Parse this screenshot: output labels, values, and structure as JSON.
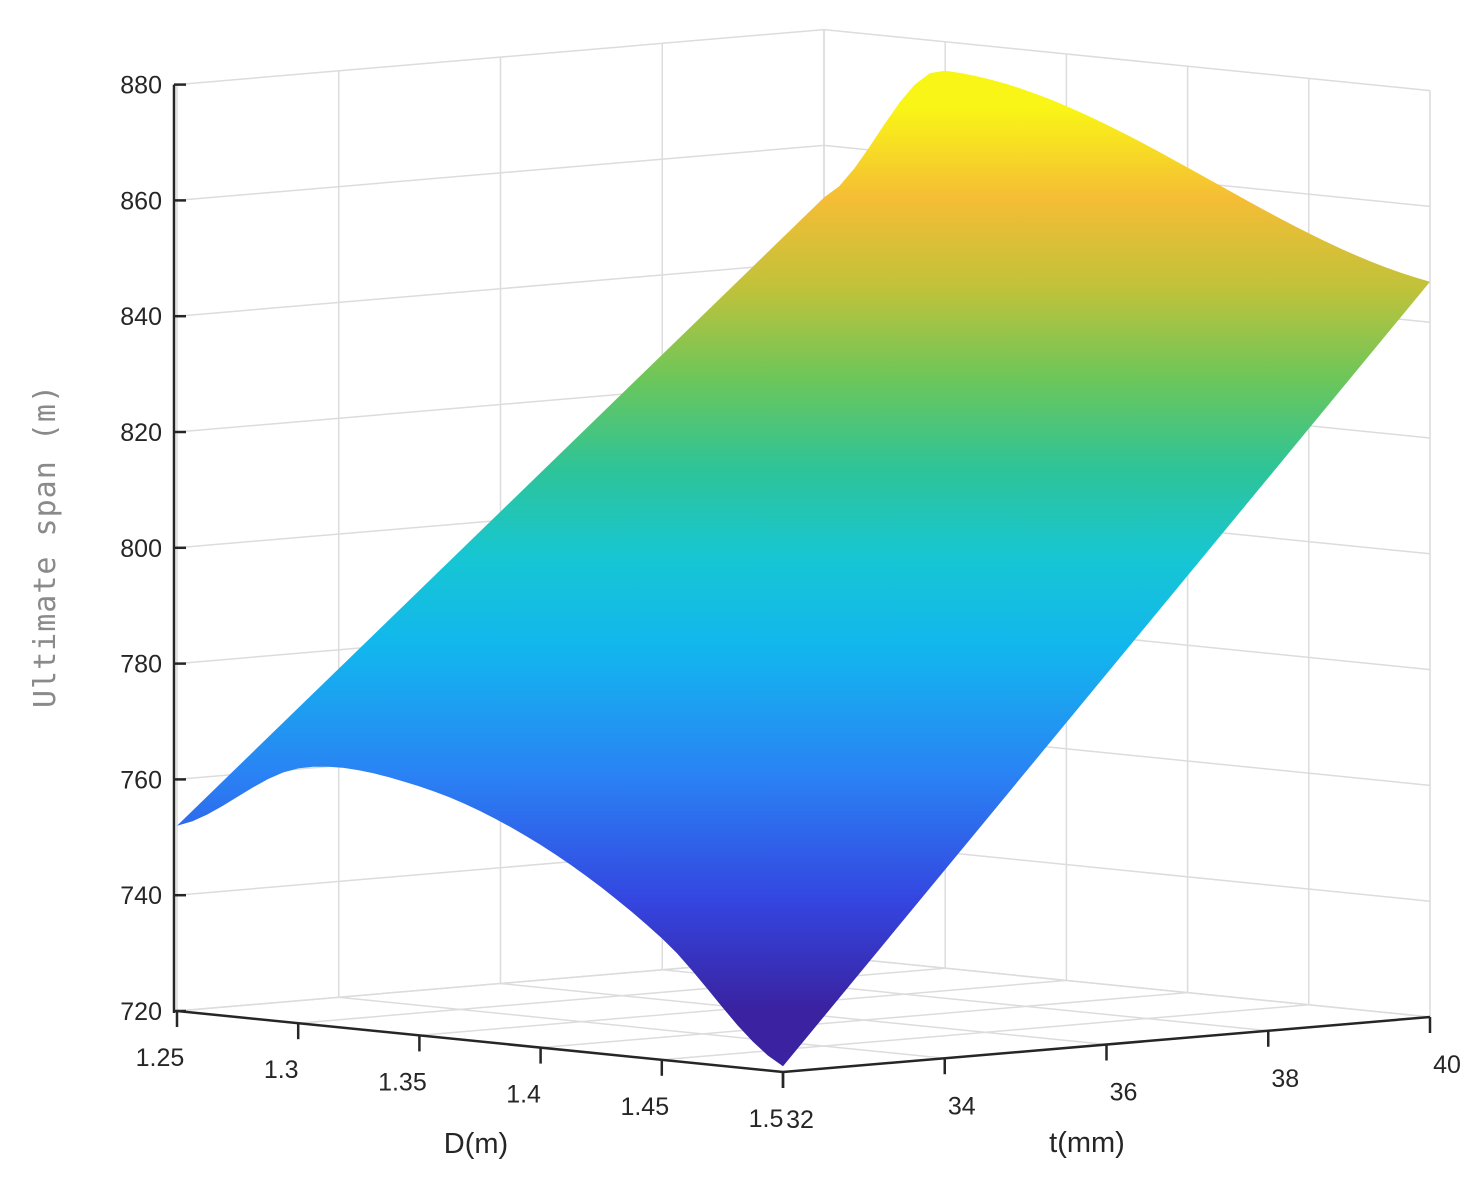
{
  "chart_data": {
    "type": "surface",
    "xlabel": "D(m)",
    "ylabel": "t(mm)",
    "zlabel": "Ultimate span (m)",
    "xlim": [
      1.25,
      1.5
    ],
    "ylim": [
      32,
      40
    ],
    "zlim": [
      720,
      880
    ],
    "x_ticks": [
      "1.25",
      "1.3",
      "1.35",
      "1.4",
      "1.45",
      "1.5"
    ],
    "y_ticks": [
      "32",
      "34",
      "36",
      "38",
      "40"
    ],
    "z_ticks": [
      "720",
      "740",
      "760",
      "780",
      "800",
      "820",
      "840",
      "860",
      "880"
    ],
    "grid": true,
    "colormap": "parula",
    "surface_points": [
      {
        "D": 1.25,
        "t": 32,
        "span": 752
      },
      {
        "D": 1.3,
        "t": 32,
        "span": 764
      },
      {
        "D": 1.35,
        "t": 32,
        "span": 763
      },
      {
        "D": 1.4,
        "t": 32,
        "span": 755
      },
      {
        "D": 1.45,
        "t": 32,
        "span": 741
      },
      {
        "D": 1.5,
        "t": 32,
        "span": 721
      },
      {
        "D": 1.25,
        "t": 40,
        "span": 851
      },
      {
        "D": 1.3,
        "t": 40,
        "span": 875
      },
      {
        "D": 1.5,
        "t": 40,
        "span": 847
      }
    ]
  }
}
